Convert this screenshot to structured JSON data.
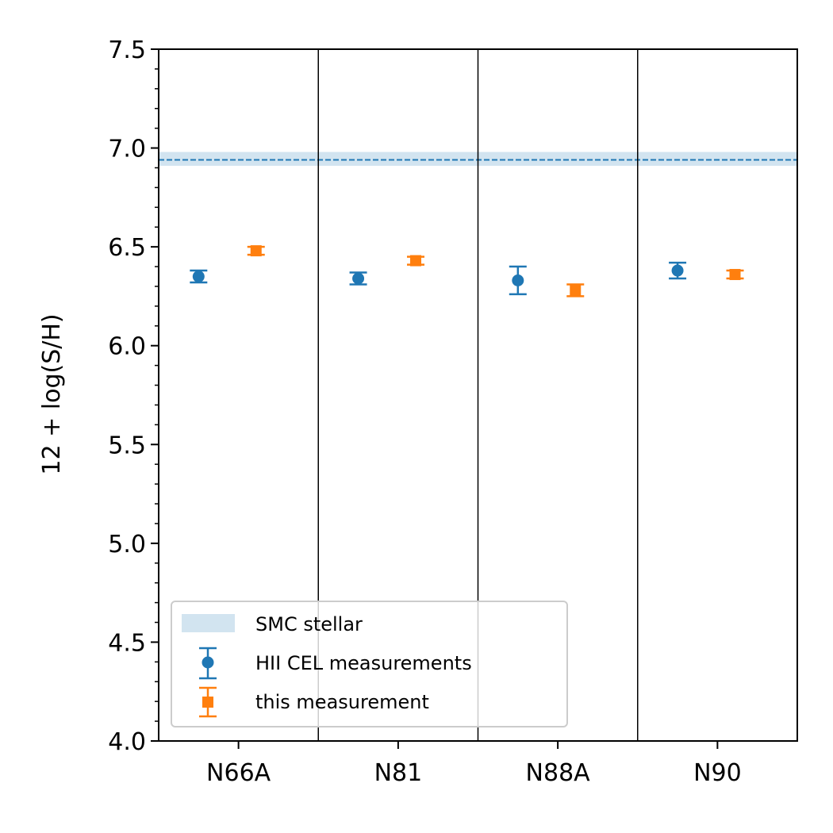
{
  "chart_data": {
    "type": "scatter",
    "title": "",
    "xlabel": "",
    "ylabel": "12 + log(S/H)",
    "ylim": [
      4.0,
      7.5
    ],
    "yticks": [
      "4.0",
      "4.5",
      "5.0",
      "5.5",
      "6.0",
      "6.5",
      "7.0",
      "7.5"
    ],
    "categories": [
      "N66A",
      "N81",
      "N88A",
      "N90"
    ],
    "grid": false,
    "legend_position": "lower-left",
    "reference_band": {
      "name": "SMC stellar",
      "center": 6.94,
      "low": 6.91,
      "high": 6.98,
      "color": "#1f77b4",
      "line_style": "dashed"
    },
    "series": [
      {
        "name": "HII CEL measurements",
        "marker": "circle",
        "color": "#1f77b4",
        "values": [
          6.35,
          6.34,
          6.33,
          6.38
        ],
        "errors": [
          0.03,
          0.03,
          0.07,
          0.04
        ]
      },
      {
        "name": "this measurement",
        "marker": "square",
        "color": "#ff7f0e",
        "values": [
          6.48,
          6.43,
          6.28,
          6.36
        ],
        "errors": [
          0.02,
          0.02,
          0.03,
          0.02
        ]
      }
    ]
  }
}
